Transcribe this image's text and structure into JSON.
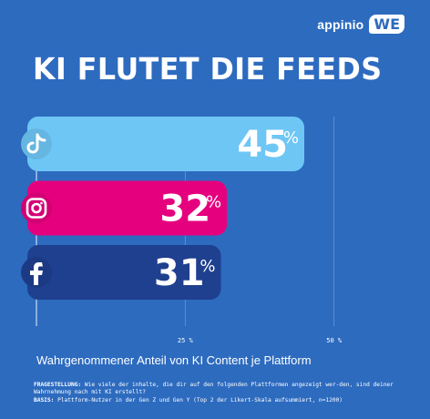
{
  "brand": {
    "name": "appinio",
    "logo": "WE"
  },
  "title": "KI FLUTET DIE FEEDS",
  "chart_data": {
    "type": "bar",
    "orientation": "horizontal",
    "categories": [
      "TikTok",
      "Instagram",
      "Facebook"
    ],
    "values": [
      45,
      32,
      31
    ],
    "value_suffix": "%",
    "xlim": [
      0,
      60
    ],
    "xticks": [
      25,
      50
    ],
    "xtick_labels": [
      "25 %",
      "50 %"
    ],
    "xlabel": "Wahrgenommener Anteil von KI Content je Plattform",
    "grid": true,
    "colors": [
      "#6ec6f5",
      "#e5007e",
      "#1f3f8f"
    ],
    "icons": [
      "tiktok-icon",
      "instagram-icon",
      "facebook-icon"
    ]
  },
  "footnotes": {
    "question_label": "FRAGESTELLUNG:",
    "question_text": "Wie viele der inhalte, die dir auf den folgenden Plattformen angezeigt wer-den, sind deiner Wahrnehmung nach mit KI erstellt?",
    "basis_label": "BASIS:",
    "basis_text": "Plattform-Nutzer in der Gen Z und Gen Y (Top 2 der Likert-Skala aufsummiert, n=1200)"
  }
}
